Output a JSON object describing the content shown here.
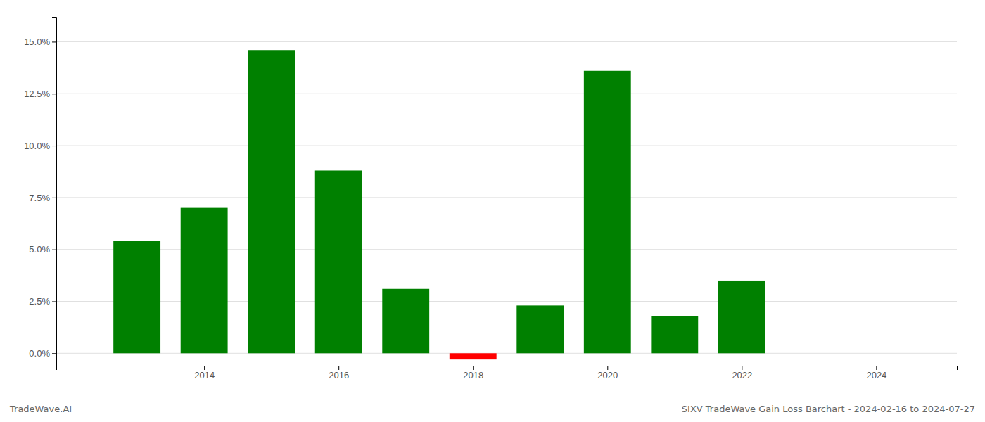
{
  "chart_data": {
    "type": "bar",
    "title": "SIXV TradeWave Gain Loss Barchart - 2024-02-16 to 2024-07-27",
    "annotations": [
      "TradeWave.AI"
    ],
    "x": [
      2013,
      2014,
      2015,
      2016,
      2017,
      2018,
      2019,
      2020,
      2021,
      2022
    ],
    "values": [
      0.054,
      0.07,
      0.146,
      0.088,
      0.031,
      -0.003,
      0.023,
      0.136,
      0.018,
      0.035
    ],
    "colors": [
      "#008000",
      "#008000",
      "#008000",
      "#008000",
      "#008000",
      "#ff0000",
      "#008000",
      "#008000",
      "#008000",
      "#008000"
    ],
    "xlim": [
      2011.8,
      2025.2
    ],
    "xticks": [
      2014,
      2016,
      2018,
      2020,
      2022,
      2024
    ],
    "ylim": [
      -0.006,
      0.162
    ],
    "yticks": [
      {
        "value": 0.0,
        "label": "0.0%"
      },
      {
        "value": 0.025,
        "label": "2.5%"
      },
      {
        "value": 0.05,
        "label": "5.0%"
      },
      {
        "value": 0.075,
        "label": "7.5%"
      },
      {
        "value": 0.1,
        "label": "10.0%"
      },
      {
        "value": 0.125,
        "label": "12.5%"
      },
      {
        "value": 0.15,
        "label": "15.0%"
      }
    ],
    "grid": true
  }
}
